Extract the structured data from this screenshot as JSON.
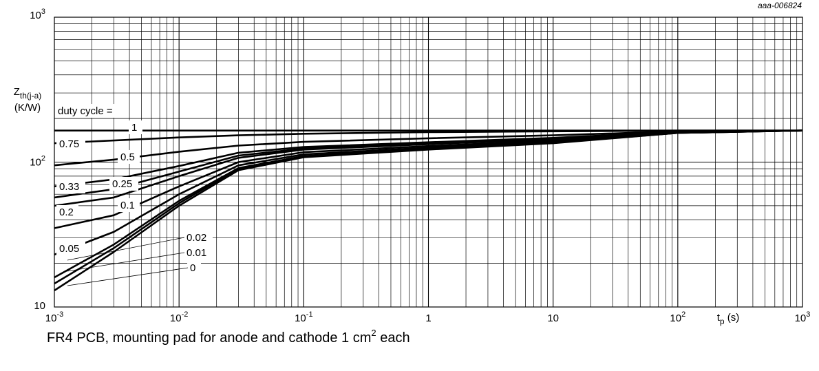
{
  "figure_code": "aaa-006824",
  "caption": {
    "before": "FR4 PCB, mounting pad for anode and cathode 1 cm",
    "sup": "2",
    "after": " each"
  },
  "chart_data": {
    "type": "line",
    "title": "",
    "ylabel": {
      "main": "Z",
      "sub": "th(j-a)",
      "unit": "(K/W)"
    },
    "xlabel": {
      "main": "t",
      "sub": "p",
      "unit": " (s)"
    },
    "x_scale": "log",
    "y_scale": "log",
    "xlim": [
      0.001,
      1000
    ],
    "ylim": [
      10,
      1000
    ],
    "grid": true,
    "x_ticks": [
      {
        "value": 0.001,
        "base": "10",
        "exp": "-3"
      },
      {
        "value": 0.01,
        "base": "10",
        "exp": "-2"
      },
      {
        "value": 0.1,
        "base": "10",
        "exp": "-1"
      },
      {
        "value": 1,
        "base": "1",
        "exp": ""
      },
      {
        "value": 10,
        "base": "10",
        "exp": ""
      },
      {
        "value": 100,
        "base": "10",
        "exp": "2"
      },
      {
        "value": 1000,
        "base": "10",
        "exp": "3"
      }
    ],
    "y_ticks": [
      {
        "value": 10,
        "base": "10",
        "exp": ""
      },
      {
        "value": 100,
        "base": "10",
        "exp": "2"
      },
      {
        "value": 1000,
        "base": "10",
        "exp": "3"
      }
    ],
    "legend_title": "duty cycle =",
    "series": [
      {
        "name": "1",
        "x": [
          0.001,
          0.01,
          0.1,
          1,
          10,
          100,
          1000
        ],
        "y": [
          165,
          165,
          165,
          165,
          165,
          165,
          165
        ]
      },
      {
        "name": "0.75",
        "x": [
          0.001,
          0.003,
          0.01,
          0.03,
          0.1,
          1,
          10,
          100,
          1000
        ],
        "y": [
          135,
          141,
          148,
          153,
          157,
          161,
          163,
          165,
          165
        ]
      },
      {
        "name": "0.5",
        "x": [
          0.001,
          0.003,
          0.01,
          0.03,
          0.1,
          1,
          10,
          100,
          1000
        ],
        "y": [
          95,
          104,
          118,
          130,
          138,
          146,
          153,
          163,
          165
        ]
      },
      {
        "name": "0.33",
        "x": [
          0.001,
          0.003,
          0.01,
          0.03,
          0.1,
          1,
          10,
          100,
          1000
        ],
        "y": [
          68,
          76,
          94,
          116,
          127,
          137,
          147,
          162,
          165
        ]
      },
      {
        "name": "0.25",
        "x": [
          0.001,
          0.003,
          0.01,
          0.03,
          0.1,
          1,
          10,
          100,
          1000
        ],
        "y": [
          57,
          65,
          86,
          111,
          124,
          135,
          145,
          161,
          165
        ]
      },
      {
        "name": "0.2",
        "x": [
          0.001,
          0.003,
          0.01,
          0.03,
          0.1,
          1,
          10,
          100,
          1000
        ],
        "y": [
          50,
          57,
          80,
          107,
          122,
          133,
          144,
          161,
          165
        ]
      },
      {
        "name": "0.1",
        "x": [
          0.001,
          0.003,
          0.01,
          0.03,
          0.1,
          1,
          10,
          100,
          1000
        ],
        "y": [
          35,
          43,
          68,
          100,
          117,
          129,
          141,
          160,
          165
        ]
      },
      {
        "name": "0.05",
        "x": [
          0.001,
          0.003,
          0.01,
          0.03,
          0.1,
          1,
          10,
          100,
          1000
        ],
        "y": [
          23,
          33,
          60,
          95,
          113,
          126,
          139,
          160,
          165
        ]
      },
      {
        "name": "0.02",
        "x": [
          0.001,
          0.003,
          0.01,
          0.03,
          0.1,
          1,
          10,
          100,
          1000
        ],
        "y": [
          16,
          27,
          54,
          91,
          110,
          124,
          137,
          159,
          165
        ]
      },
      {
        "name": "0.01",
        "x": [
          0.001,
          0.003,
          0.01,
          0.03,
          0.1,
          1,
          10,
          100,
          1000
        ],
        "y": [
          14.5,
          25.5,
          52,
          90,
          109,
          123,
          136,
          159,
          165
        ]
      },
      {
        "name": "0",
        "x": [
          0.001,
          0.003,
          0.01,
          0.03,
          0.1,
          1,
          10,
          100,
          1000
        ],
        "y": [
          13,
          24,
          50,
          88,
          108,
          122,
          135,
          159,
          165
        ]
      }
    ]
  }
}
